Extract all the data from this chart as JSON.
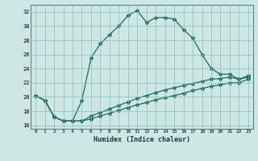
{
  "xlabel": "Humidex (Indice chaleur)",
  "background_color": "#cde8e4",
  "grid_color": "#8bbcb8",
  "line_color": "#1a6b5a",
  "xlim": [
    -0.5,
    23.5
  ],
  "ylim": [
    15.5,
    33.0
  ],
  "yticks": [
    16,
    18,
    20,
    22,
    24,
    26,
    28,
    30,
    32
  ],
  "xticks": [
    0,
    1,
    2,
    3,
    4,
    5,
    6,
    7,
    8,
    9,
    10,
    11,
    12,
    13,
    14,
    15,
    16,
    17,
    18,
    19,
    20,
    21,
    22,
    23
  ],
  "line1_x": [
    0,
    1,
    2,
    3,
    4,
    5,
    6,
    7,
    8,
    9,
    10,
    11,
    12,
    13,
    14,
    15,
    16,
    17,
    18,
    19,
    20,
    21,
    22,
    23
  ],
  "line1_y": [
    20.2,
    19.5,
    17.2,
    16.6,
    16.6,
    19.5,
    25.5,
    27.5,
    28.8,
    30.0,
    31.5,
    32.2,
    30.5,
    31.2,
    31.2,
    31.0,
    29.5,
    28.3,
    26.0,
    24.0,
    23.2,
    23.2,
    22.5,
    22.8
  ],
  "line2_x": [
    0,
    1,
    2,
    3,
    4,
    5,
    6,
    7,
    8,
    9,
    10,
    11,
    12,
    13,
    14,
    15,
    16,
    17,
    18,
    19,
    20,
    21,
    22,
    23
  ],
  "line2_y": [
    20.2,
    19.5,
    17.2,
    16.6,
    16.6,
    16.6,
    17.3,
    17.8,
    18.3,
    18.8,
    19.3,
    19.8,
    20.2,
    20.6,
    21.0,
    21.3,
    21.6,
    21.9,
    22.2,
    22.5,
    22.6,
    22.8,
    22.5,
    23.0
  ],
  "line3_x": [
    0,
    1,
    2,
    3,
    4,
    5,
    6,
    7,
    8,
    9,
    10,
    11,
    12,
    13,
    14,
    15,
    16,
    17,
    18,
    19,
    20,
    21,
    22,
    23
  ],
  "line3_y": [
    20.2,
    19.5,
    17.2,
    16.6,
    16.6,
    16.6,
    16.9,
    17.3,
    17.7,
    18.1,
    18.5,
    18.9,
    19.2,
    19.6,
    19.9,
    20.2,
    20.5,
    20.9,
    21.2,
    21.5,
    21.7,
    22.0,
    22.0,
    22.5
  ]
}
